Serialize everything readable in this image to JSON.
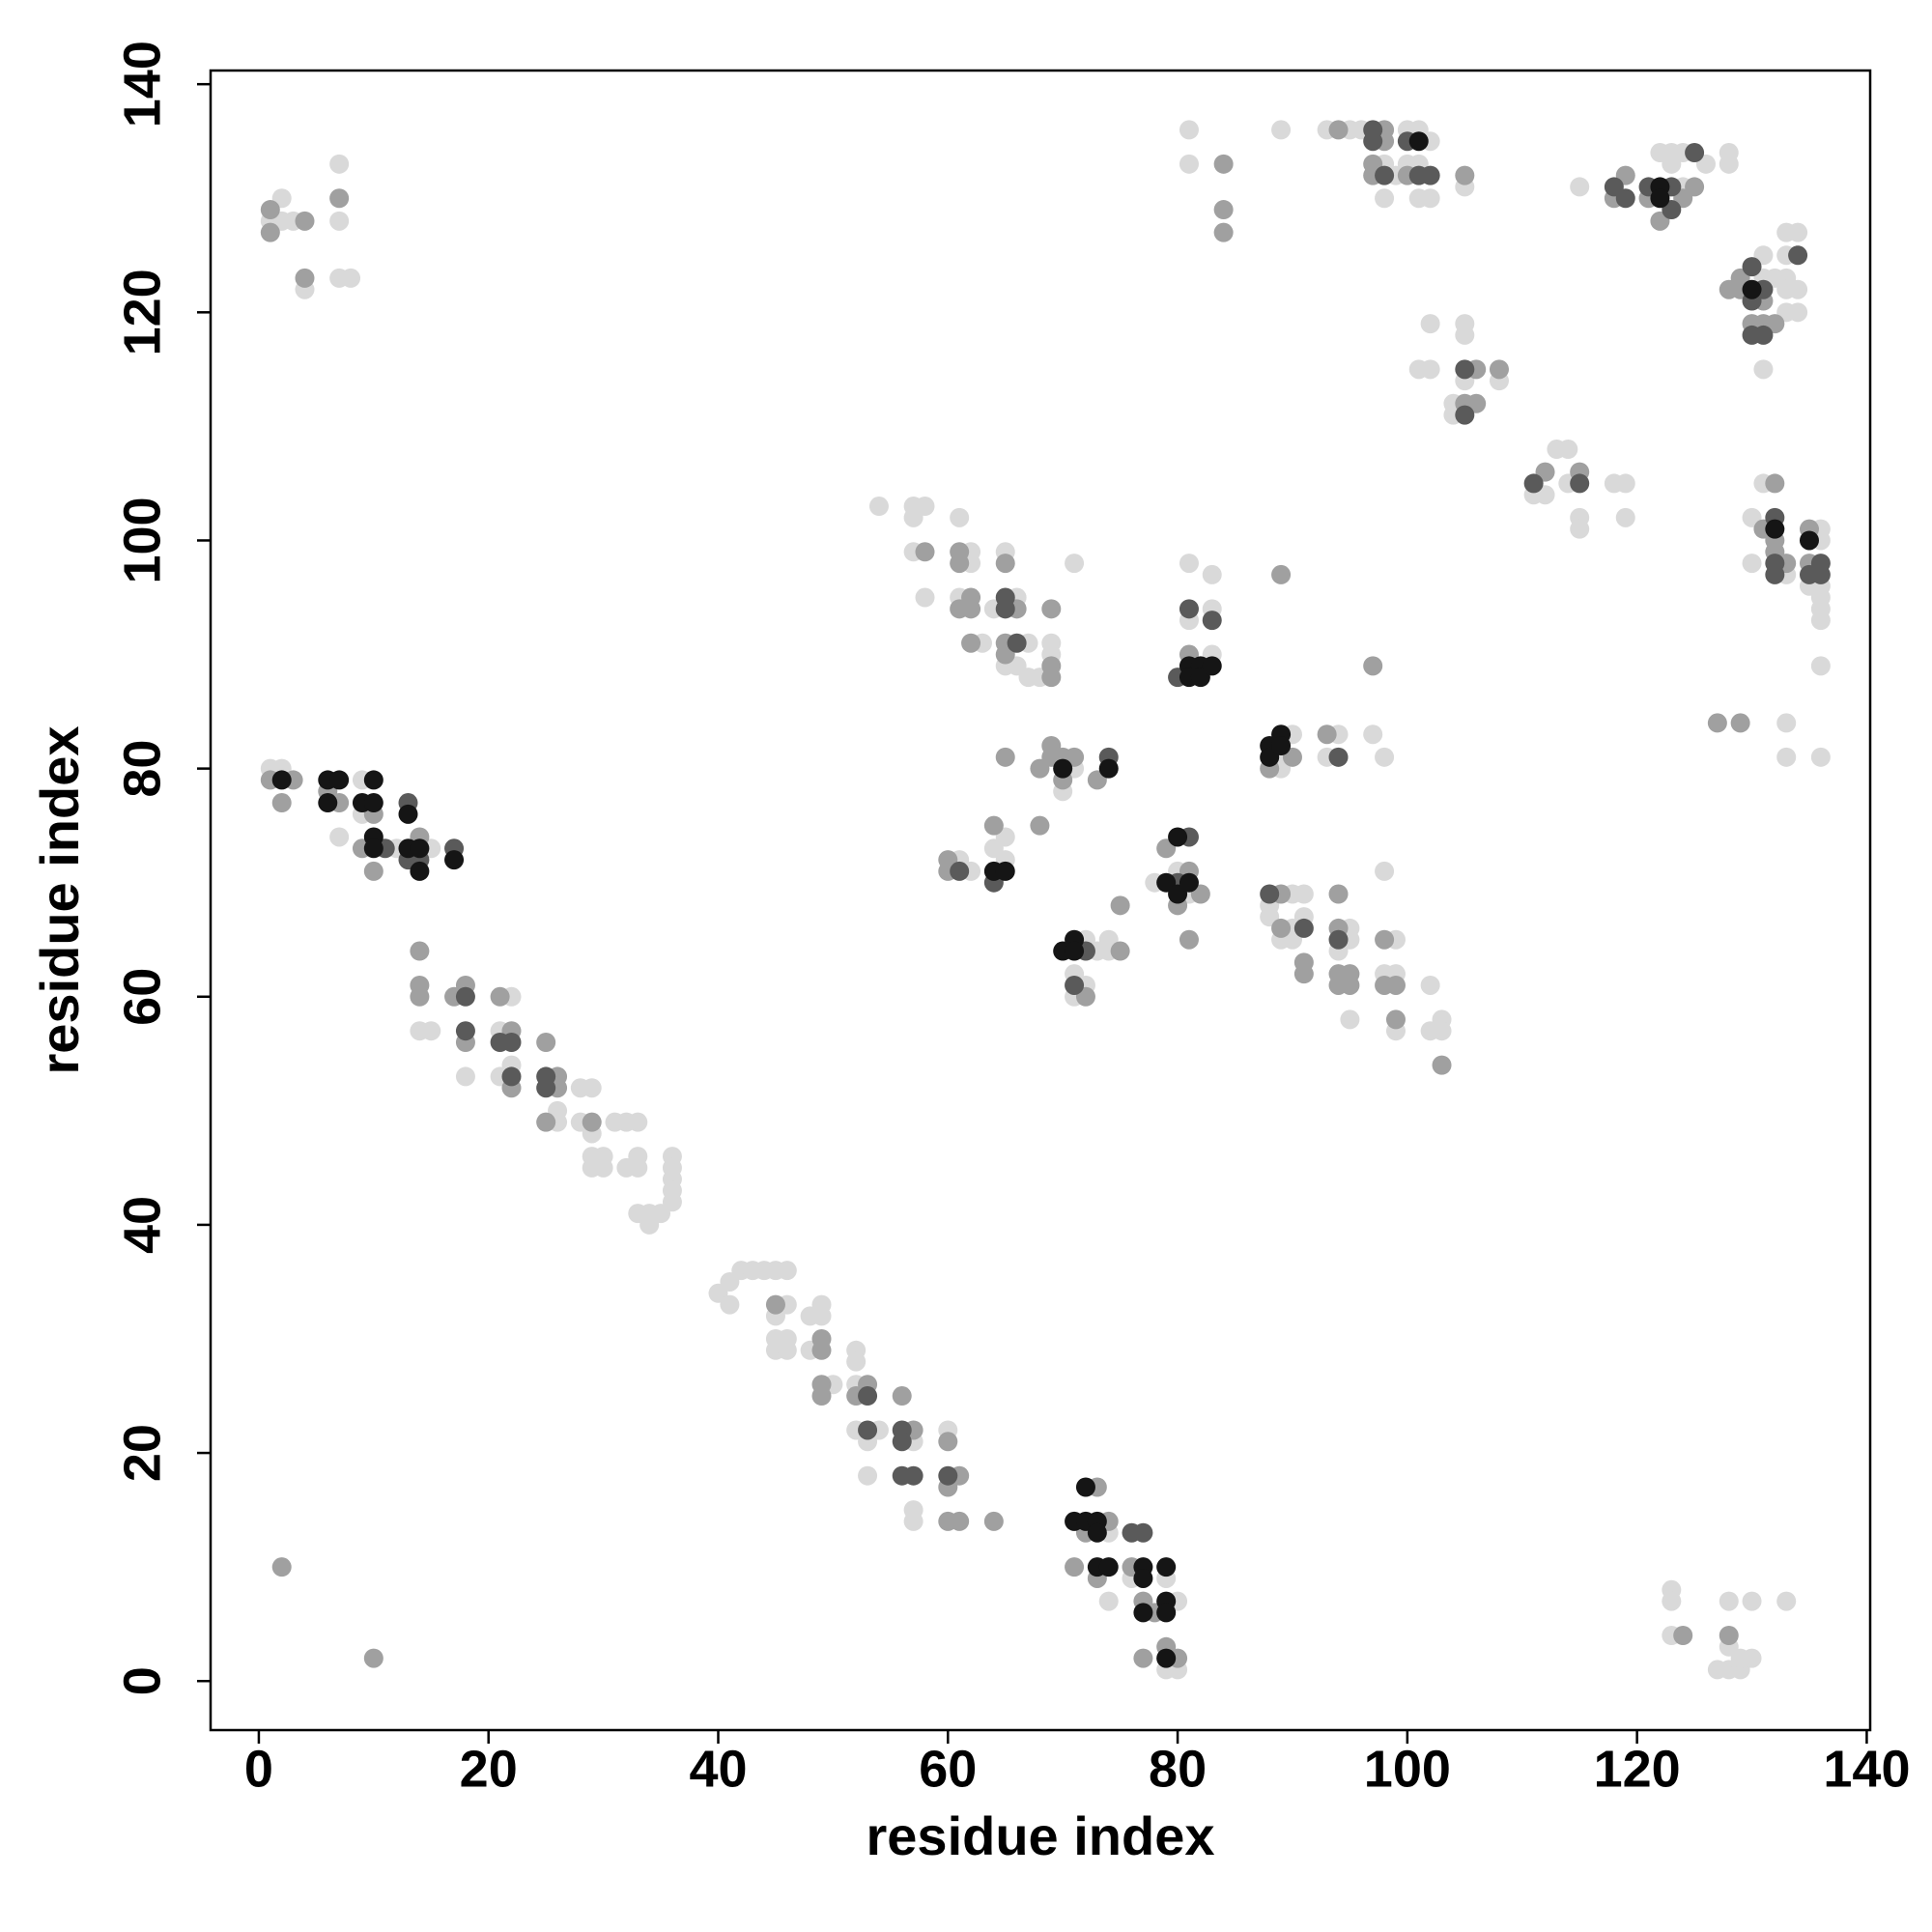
{
  "chart_data": {
    "type": "scatter",
    "xlabel": "residue index",
    "ylabel": "residue index",
    "xlim": [
      -4.2,
      140.3
    ],
    "ylim": [
      -4.3,
      141.2
    ],
    "xticks": [
      0,
      20,
      40,
      60,
      80,
      100,
      120,
      140
    ],
    "yticks": [
      0,
      20,
      40,
      60,
      80,
      100,
      120,
      140
    ],
    "grid": false,
    "series": [
      {
        "color": "#d9d9d9",
        "x": [
          1,
          2,
          2,
          3,
          4,
          7,
          7,
          7,
          8,
          1,
          2,
          7,
          9,
          9,
          12,
          15,
          14,
          15,
          18,
          22,
          21,
          21,
          22,
          26,
          26,
          28,
          29,
          28,
          29,
          29,
          29,
          30,
          30,
          31,
          32,
          33,
          32,
          33,
          33,
          33,
          34,
          34,
          35,
          36,
          36,
          36,
          36,
          36,
          40,
          41,
          41,
          42,
          43,
          44,
          45,
          46,
          45,
          46,
          45,
          45,
          46,
          46,
          48,
          48,
          49,
          49,
          50,
          52,
          52,
          52,
          52,
          54,
          53,
          53,
          57,
          57,
          57,
          60,
          74,
          74,
          76,
          79,
          80,
          79,
          80,
          123,
          123,
          123,
          128,
          128,
          127,
          128,
          129,
          129,
          130,
          130,
          133,
          54,
          57,
          58,
          57,
          57,
          58,
          61,
          62,
          62,
          61,
          63,
          65,
          66,
          64,
          65,
          66,
          67,
          67,
          68,
          69,
          69,
          71,
          71,
          70,
          61,
          62,
          64,
          65,
          65,
          72,
          71,
          72,
          71,
          73,
          74,
          74,
          78,
          80,
          81,
          81,
          81,
          83,
          83,
          83,
          81,
          81,
          89,
          89,
          89,
          90,
          93,
          94,
          97,
          98,
          88,
          90,
          91,
          88,
          90,
          91,
          89,
          90,
          95,
          95,
          94,
          95,
          98,
          99,
          98,
          99,
          99,
          102,
          102,
          103,
          103,
          93,
          95,
          96,
          98,
          99,
          98,
          100,
          101,
          102,
          100,
          101,
          101,
          102,
          105,
          102,
          105,
          105,
          101,
          102,
          105,
          108,
          104,
          104,
          112,
          111,
          113,
          114,
          114,
          115,
          115,
          118,
          119,
          119,
          115,
          123,
          122,
          123,
          124,
          124,
          126,
          128,
          128,
          131,
          131,
          131,
          133,
          134,
          133,
          132,
          133,
          133,
          134,
          133,
          134,
          133,
          133,
          136,
          136,
          131,
          130,
          130,
          133,
          136,
          136,
          135,
          136,
          136,
          136,
          136
        ],
        "values": [
          128,
          130,
          128,
          128,
          122,
          133,
          128,
          123,
          123,
          80,
          80,
          74,
          79,
          76,
          73,
          73,
          57,
          57,
          53,
          60,
          57,
          53,
          54,
          49,
          50,
          52,
          52,
          49,
          48,
          46,
          45,
          46,
          45,
          49,
          49,
          49,
          45,
          46,
          45,
          41,
          41,
          40,
          41,
          46,
          45,
          44,
          43,
          42,
          34,
          35,
          33,
          36,
          36,
          36,
          36,
          36,
          32,
          33,
          30,
          29,
          30,
          29,
          32,
          29,
          33,
          32,
          26,
          29,
          28,
          26,
          22,
          22,
          21,
          18,
          21,
          15,
          14,
          22,
          13,
          7,
          9,
          9,
          7,
          1,
          1,
          4,
          8,
          7,
          7,
          3,
          1,
          1,
          1,
          2,
          2,
          7,
          7,
          103,
          103,
          103,
          102,
          99,
          95,
          102,
          99,
          98,
          95,
          91,
          99,
          95,
          94,
          89,
          89,
          91,
          88,
          88,
          91,
          90,
          98,
          80,
          78,
          72,
          71,
          73,
          74,
          72,
          65,
          62,
          61,
          60,
          64,
          65,
          64,
          70,
          71,
          69,
          98,
          93,
          97,
          94,
          90,
          136,
          133,
          136,
          81,
          80,
          83,
          81,
          83,
          83,
          81,
          68,
          69,
          69,
          67,
          66,
          67,
          65,
          65,
          66,
          65,
          64,
          58,
          71,
          65,
          62,
          62,
          57,
          61,
          57,
          58,
          57,
          136,
          136,
          136,
          133,
          132,
          130,
          136,
          136,
          135,
          133,
          133,
          130,
          130,
          131,
          119,
          119,
          118,
          115,
          115,
          114,
          114,
          112,
          111,
          104,
          104,
          108,
          108,
          105,
          102,
          101,
          105,
          105,
          102,
          131,
          134,
          134,
          133,
          134,
          131,
          133,
          134,
          133,
          123,
          115,
          125,
          127,
          127,
          125,
          123,
          123,
          122,
          122,
          120,
          120,
          84,
          81,
          81,
          89,
          105,
          102,
          98,
          97,
          101,
          100,
          96,
          96,
          95,
          94,
          93
        ]
      },
      {
        "color": "#a0a0a0",
        "x": [
          1,
          1,
          4,
          4,
          7,
          1,
          2,
          3,
          6,
          7,
          10,
          10,
          9,
          14,
          14,
          14,
          14,
          18,
          17,
          18,
          21,
          22,
          22,
          25,
          26,
          26,
          25,
          29,
          45,
          49,
          49,
          49,
          49,
          52,
          53,
          56,
          57,
          60,
          61,
          60,
          60,
          61,
          64,
          73,
          74,
          72,
          71,
          73,
          76,
          77,
          78,
          77,
          79,
          80,
          2,
          10,
          124,
          128,
          58,
          61,
          61,
          61,
          62,
          62,
          62,
          65,
          66,
          65,
          65,
          69,
          69,
          69,
          69,
          69,
          70,
          68,
          71,
          70,
          73,
          65,
          60,
          60,
          64,
          68,
          72,
          75,
          75,
          79,
          81,
          82,
          80,
          81,
          81,
          84,
          84,
          84,
          88,
          90,
          89,
          93,
          97,
          89,
          89,
          91,
          91,
          94,
          94,
          94,
          95,
          94,
          95,
          98,
          98,
          99,
          99,
          103,
          94,
          98,
          98,
          97,
          97,
          100,
          105,
          106,
          108,
          105,
          106,
          112,
          115,
          119,
          118,
          121,
          122,
          124,
          125,
          128,
          129,
          129,
          131,
          131,
          130,
          132,
          127,
          129,
          132,
          131,
          132,
          132,
          133,
          135,
          135
        ],
        "values": [
          127,
          129,
          128,
          123,
          130,
          79,
          77,
          79,
          78,
          77,
          76,
          71,
          73,
          74,
          64,
          61,
          60,
          61,
          60,
          56,
          60,
          57,
          52,
          56,
          53,
          52,
          49,
          49,
          33,
          30,
          29,
          26,
          25,
          25,
          26,
          25,
          22,
          21,
          18,
          17,
          14,
          14,
          14,
          17,
          14,
          13,
          10,
          9,
          10,
          7,
          6,
          2,
          3,
          2,
          10,
          2,
          4,
          4,
          99,
          99,
          98,
          94,
          95,
          94,
          91,
          98,
          94,
          91,
          90,
          94,
          89,
          88,
          82,
          81,
          81,
          80,
          81,
          79,
          79,
          81,
          72,
          71,
          75,
          75,
          60,
          64,
          68,
          73,
          71,
          69,
          68,
          65,
          90,
          129,
          127,
          133,
          80,
          81,
          97,
          83,
          89,
          69,
          66,
          63,
          62,
          69,
          66,
          62,
          62,
          61,
          61,
          65,
          61,
          61,
          58,
          54,
          136,
          136,
          135,
          133,
          132,
          132,
          132,
          115,
          115,
          112,
          112,
          106,
          106,
          132,
          130,
          130,
          128,
          130,
          131,
          122,
          123,
          122,
          121,
          119,
          119,
          119,
          84,
          84,
          105,
          101,
          100,
          99,
          98,
          101,
          98
        ]
      },
      {
        "color": "#5a5a5a",
        "x": [
          11,
          13,
          13,
          14,
          17,
          21,
          22,
          22,
          18,
          18,
          25,
          25,
          53,
          53,
          56,
          56,
          56,
          57,
          60,
          76,
          77,
          65,
          65,
          66,
          74,
          61,
          64,
          72,
          71,
          81,
          80,
          81,
          83,
          80,
          94,
          88,
          91,
          94,
          97,
          97,
          98,
          100,
          101,
          102,
          105,
          105,
          111,
          115,
          118,
          119,
          121,
          123,
          123,
          125,
          130,
          130,
          131,
          131,
          130,
          134,
          132,
          132,
          132,
          135,
          136,
          136
        ],
        "values": [
          73,
          77,
          72,
          72,
          73,
          56,
          56,
          53,
          60,
          57,
          53,
          52,
          25,
          22,
          22,
          21,
          18,
          18,
          18,
          13,
          13,
          95,
          94,
          91,
          81,
          71,
          70,
          64,
          61,
          74,
          70,
          94,
          93,
          88,
          81,
          69,
          66,
          65,
          136,
          135,
          132,
          135,
          132,
          132,
          115,
          111,
          105,
          105,
          131,
          130,
          131,
          131,
          129,
          134,
          124,
          121,
          122,
          118,
          118,
          125,
          102,
          98,
          97,
          97,
          98,
          97
        ]
      },
      {
        "color": "#151515",
        "x": [
          2,
          6,
          6,
          7,
          9,
          10,
          10,
          10,
          10,
          13,
          13,
          14,
          14,
          17,
          72,
          71,
          72,
          73,
          73,
          73,
          74,
          77,
          77,
          79,
          79,
          79,
          77,
          79,
          70,
          74,
          64,
          65,
          70,
          71,
          71,
          79,
          80,
          80,
          81,
          81,
          81,
          82,
          82,
          83,
          88,
          88,
          89,
          89,
          101,
          122,
          122,
          130,
          132,
          135
        ],
        "values": [
          79,
          79,
          77,
          79,
          77,
          79,
          77,
          74,
          73,
          76,
          73,
          73,
          71,
          72,
          17,
          14,
          14,
          14,
          13,
          10,
          10,
          10,
          9,
          10,
          7,
          6,
          6,
          2,
          80,
          80,
          71,
          71,
          64,
          65,
          64,
          70,
          74,
          69,
          70,
          89,
          88,
          89,
          88,
          89,
          82,
          81,
          83,
          82,
          135,
          131,
          130,
          122,
          101,
          100
        ]
      }
    ]
  }
}
